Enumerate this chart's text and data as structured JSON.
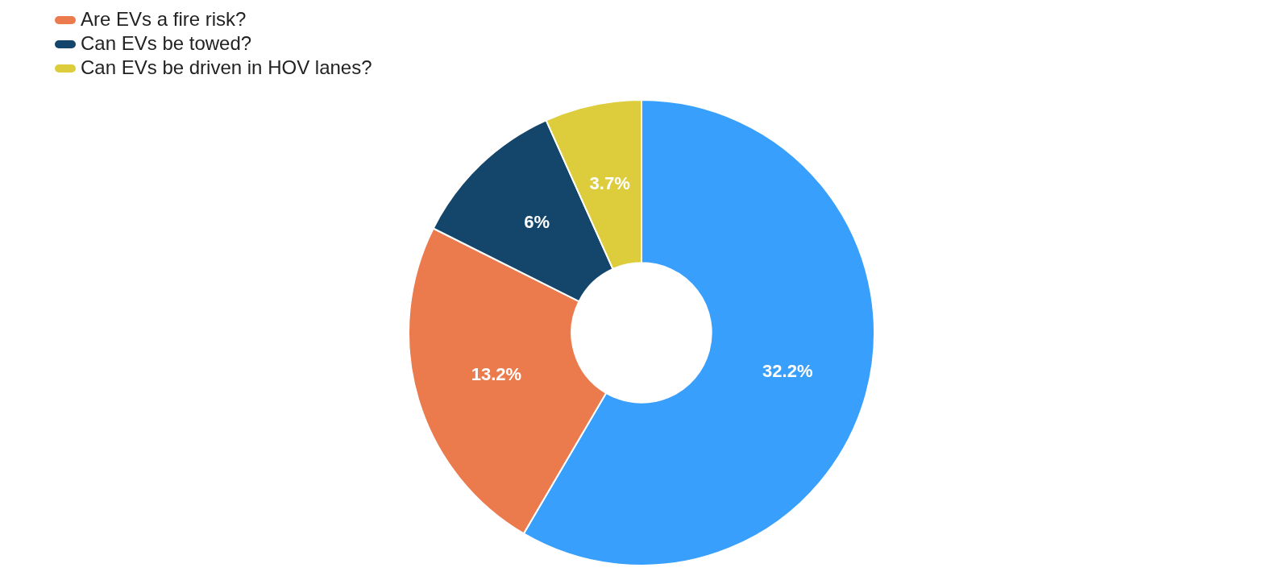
{
  "chart_data": {
    "type": "donut",
    "categories": [
      null,
      "Are EVs a fire risk?",
      "Can EVs be towed?",
      "Can EVs be driven in HOV lanes?"
    ],
    "values": [
      32.2,
      13.2,
      6,
      3.7
    ],
    "colors": [
      "#389ffd",
      "#eb7a4c",
      "#14466b",
      "#ddcc3c"
    ],
    "value_labels": [
      "32.2%",
      "13.2%",
      "6%",
      "3.7%"
    ],
    "legend": "top left"
  }
}
